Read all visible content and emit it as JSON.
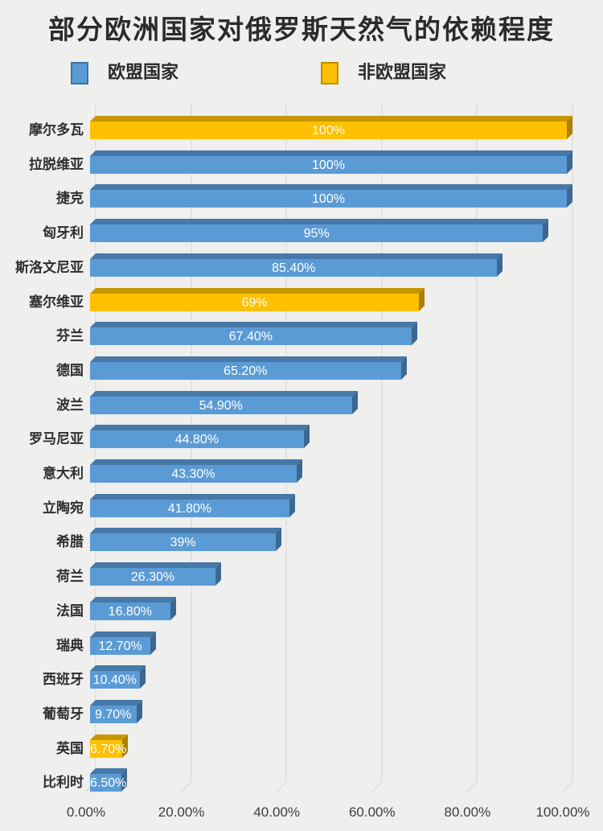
{
  "title": "部分欧洲国家对俄罗斯天然气的依赖程度",
  "legend": {
    "eu": {
      "label": "欧盟国家"
    },
    "non_eu": {
      "label": "非欧盟国家"
    }
  },
  "colors": {
    "background": "#EFEFED",
    "gridline": "#E2E2E0",
    "title_text": "#2B2B2B",
    "axis_text": "#3D3D3D",
    "value_text": "#FFFFFF",
    "eu": {
      "face": "#5B9BD5",
      "top": "#4678A8",
      "side": "#3B6792",
      "border": "#41719C"
    },
    "non_eu": {
      "face": "#FFC000",
      "top": "#C79700",
      "side": "#AA8000",
      "border": "#BD8F00"
    }
  },
  "chart_data": {
    "type": "bar",
    "orientation": "horizontal",
    "title": "部分欧洲国家对俄罗斯天然气的依赖程度",
    "categories": [
      "摩尔多瓦",
      "拉脱维亚",
      "捷克",
      "匈牙利",
      "斯洛文尼亚",
      "塞尔维亚",
      "芬兰",
      "德国",
      "波兰",
      "罗马尼亚",
      "意大利",
      "立陶宛",
      "希腊",
      "荷兰",
      "法国",
      "瑞典",
      "西班牙",
      "葡萄牙",
      "英国",
      "比利时"
    ],
    "values": [
      100,
      100,
      100,
      95,
      85.4,
      69,
      67.4,
      65.2,
      54.9,
      44.8,
      43.3,
      41.8,
      39,
      26.3,
      16.8,
      12.7,
      10.4,
      9.7,
      6.7,
      6.5
    ],
    "value_labels": [
      "100%",
      "100%",
      "100%",
      "95%",
      "85.40%",
      "69%",
      "67.40%",
      "65.20%",
      "54.90%",
      "44.80%",
      "43.30%",
      "41.80%",
      "39%",
      "26.30%",
      "16.80%",
      "12.70%",
      "10.40%",
      "9.70%",
      "6.70%",
      "6.50%"
    ],
    "groups": [
      "non_eu",
      "eu",
      "eu",
      "eu",
      "eu",
      "non_eu",
      "eu",
      "eu",
      "eu",
      "eu",
      "eu",
      "eu",
      "eu",
      "eu",
      "eu",
      "eu",
      "eu",
      "eu",
      "non_eu",
      "eu"
    ],
    "series": [
      {
        "name": "欧盟国家",
        "color": "#5B9BD5"
      },
      {
        "name": "非欧盟国家",
        "color": "#FFC000"
      }
    ],
    "xlim": [
      0,
      100
    ],
    "x_ticks": [
      "0.00%",
      "20.00%",
      "40.00%",
      "60.00%",
      "80.00%",
      "100.00%"
    ],
    "x_tick_values": [
      0,
      20,
      40,
      60,
      80,
      100
    ],
    "grid": true,
    "legend_position": "top"
  }
}
